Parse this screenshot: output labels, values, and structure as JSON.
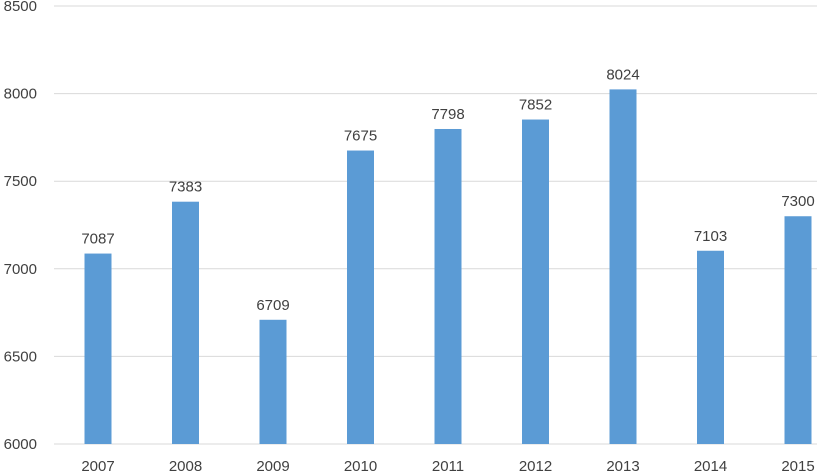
{
  "chart_data": {
    "type": "bar",
    "categories": [
      "2007",
      "2008",
      "2009",
      "2010",
      "2011",
      "2012",
      "2013",
      "2014",
      "2015"
    ],
    "values": [
      7087,
      7383,
      6709,
      7675,
      7798,
      7852,
      8024,
      7103,
      7300
    ],
    "data_labels": [
      "7087",
      "7383",
      "6709",
      "7675",
      "7798",
      "7852",
      "8024",
      "7103",
      "7300"
    ],
    "y_ticks": [
      "8500",
      "8000",
      "7500",
      "7000",
      "6500",
      "6000"
    ],
    "y_tick_values": [
      8500,
      8000,
      7500,
      7000,
      6500,
      6000
    ],
    "ylim": [
      6000,
      8500
    ],
    "title": "",
    "xlabel": "",
    "ylabel": "",
    "grid": true,
    "legend": "none",
    "colors": {
      "bar": "#5b9bd5",
      "grid": "#d9d9d9",
      "text": "#404040"
    }
  }
}
